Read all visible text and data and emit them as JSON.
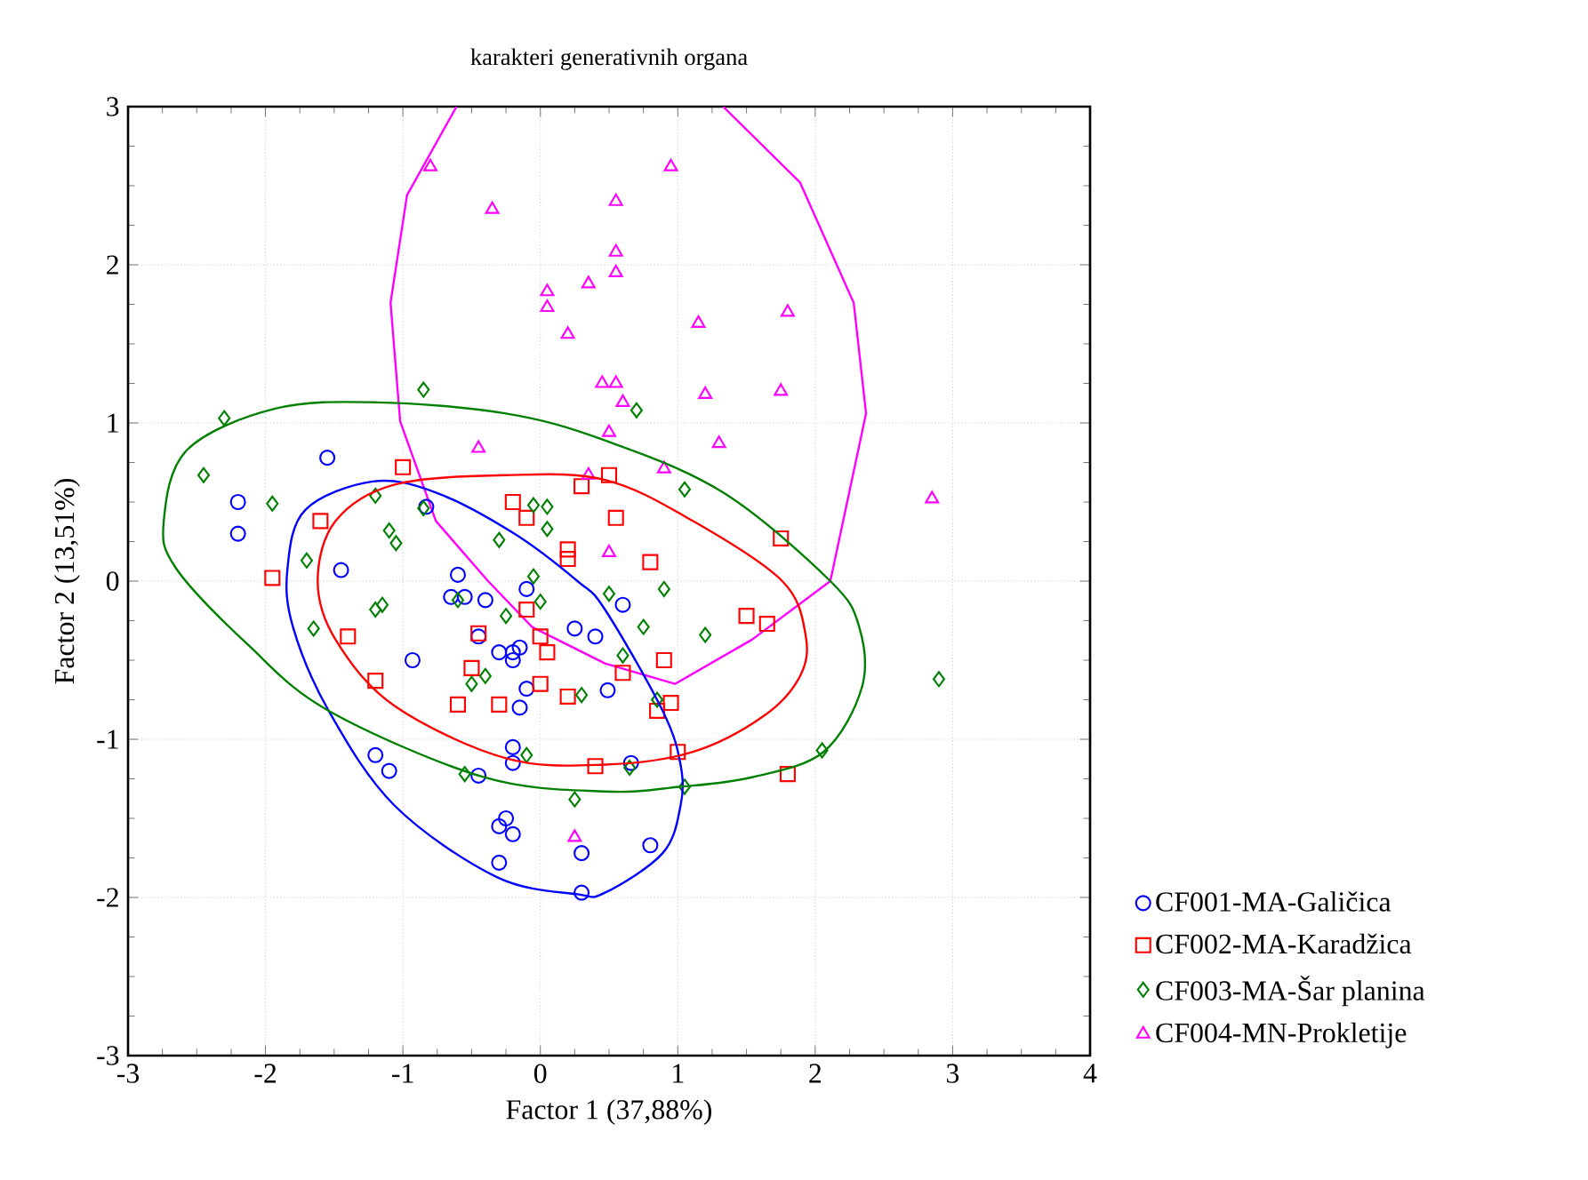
{
  "chart_data": {
    "type": "scatter",
    "title": "karakteri generativnih organa",
    "xlabel": "Factor 1 (37,88%)",
    "ylabel": "Factor 2 (13,51%)",
    "xlim": [
      -3,
      4
    ],
    "ylim": [
      -3,
      3
    ],
    "xticks": [
      -3,
      -2,
      -1,
      0,
      1,
      2,
      3,
      4
    ],
    "yticks": [
      -3,
      -2,
      -1,
      0,
      1,
      2,
      3
    ],
    "grid": true,
    "legend": "bottom right",
    "series": [
      {
        "name": "CF001-MA-Galičica",
        "color": "#0000ff",
        "marker": "circle",
        "x": [
          -2.2,
          -2.2,
          -1.55,
          -1.45,
          -0.83,
          -1.2,
          -1.1,
          -0.93,
          -0.6,
          -0.65,
          -0.55,
          -0.4,
          -0.45,
          -0.3,
          -0.2,
          -0.2,
          -0.15,
          -0.1,
          -0.1,
          -0.15,
          -0.45,
          -0.2,
          -0.2,
          -0.25,
          -0.3,
          -0.2,
          -0.3,
          0.25,
          0.4,
          0.6,
          0.49,
          0.66,
          0.8,
          0.3,
          0.3
        ],
        "values": [
          0.5,
          0.3,
          0.78,
          0.07,
          0.47,
          -1.1,
          -1.2,
          -0.5,
          0.04,
          -0.1,
          -0.1,
          -0.12,
          -0.35,
          -0.45,
          -0.45,
          -0.5,
          -0.42,
          -0.05,
          -0.68,
          -0.8,
          -1.23,
          -1.05,
          -1.15,
          -1.5,
          -1.55,
          -1.6,
          -1.78,
          -0.3,
          -0.35,
          -0.15,
          -0.69,
          -1.15,
          -1.67,
          -1.72,
          -1.97
        ]
      },
      {
        "name": "CF002-MA-Karadžica",
        "color": "#ff0000",
        "marker": "square",
        "x": [
          -1.95,
          -1.6,
          -1.4,
          -1.2,
          -1.0,
          -0.6,
          -0.5,
          -0.45,
          -0.3,
          -0.2,
          -0.1,
          -0.1,
          0.0,
          0.05,
          0.0,
          0.2,
          0.2,
          0.2,
          0.3,
          0.5,
          0.55,
          0.4,
          0.6,
          0.8,
          0.85,
          0.9,
          0.95,
          1.0,
          1.5,
          1.65,
          1.75,
          1.8
        ],
        "values": [
          0.02,
          0.38,
          -0.35,
          -0.63,
          0.72,
          -0.78,
          -0.55,
          -0.33,
          -0.78,
          0.5,
          0.4,
          -0.18,
          -0.35,
          -0.45,
          -0.65,
          0.2,
          0.14,
          -0.73,
          0.6,
          0.67,
          0.4,
          -1.17,
          -0.58,
          0.12,
          -0.82,
          -0.5,
          -0.77,
          -1.08,
          -0.22,
          -0.27,
          0.27,
          -1.22
        ]
      },
      {
        "name": "CF003-MA-Šar planina",
        "color": "#008000",
        "marker": "diamond",
        "x": [
          -2.45,
          -2.3,
          -1.95,
          -1.7,
          -1.65,
          -1.2,
          -1.2,
          -1.15,
          -1.1,
          -1.05,
          -0.85,
          -0.85,
          -0.6,
          -0.55,
          -0.5,
          -0.4,
          -0.3,
          -0.25,
          -0.1,
          -0.05,
          -0.05,
          0.05,
          0.05,
          0.0,
          0.3,
          0.5,
          0.6,
          0.65,
          0.75,
          0.7,
          0.9,
          0.85,
          1.05,
          1.2,
          1.05,
          0.25,
          2.05,
          2.9
        ],
        "values": [
          0.67,
          1.03,
          0.49,
          0.13,
          -0.3,
          0.54,
          -0.18,
          -0.15,
          0.32,
          0.24,
          0.46,
          1.21,
          -0.12,
          -1.22,
          -0.65,
          -0.6,
          0.26,
          -0.22,
          -1.1,
          0.48,
          0.03,
          0.47,
          0.33,
          -0.13,
          -0.72,
          -0.08,
          -0.47,
          -1.18,
          -0.29,
          1.08,
          -0.05,
          -0.75,
          0.58,
          -0.34,
          -1.3,
          -1.38,
          -1.07,
          -0.62
        ]
      },
      {
        "name": "CF004-MN-Prokletije",
        "color": "#ff00ff",
        "marker": "triangle",
        "x": [
          -0.8,
          -0.35,
          0.05,
          0.05,
          0.2,
          0.35,
          0.55,
          0.55,
          0.55,
          0.95,
          1.15,
          1.8,
          0.45,
          0.55,
          0.6,
          0.5,
          1.2,
          1.3,
          1.75,
          -0.45,
          0.35,
          0.9,
          0.5,
          0.25,
          2.85
        ],
        "values": [
          2.62,
          2.35,
          1.73,
          1.83,
          1.56,
          1.88,
          1.95,
          2.08,
          2.4,
          2.62,
          1.63,
          1.7,
          1.25,
          1.25,
          1.13,
          0.94,
          1.18,
          0.87,
          1.2,
          0.84,
          0.67,
          0.71,
          0.18,
          -1.62,
          0.52
        ]
      },
      {
        "type": "line",
        "color": "#ff00ff",
        "marker": "none",
        "x": [
          -0.61,
          -0.97,
          -1.09,
          -1.02,
          -0.76,
          -0.38,
          -0.06,
          0.47,
          0.98,
          1.54,
          2.11,
          2.37,
          2.28,
          1.89,
          1.33
        ],
        "values": [
          3.0,
          2.44,
          1.76,
          1.01,
          0.38,
          0.0,
          -0.29,
          -0.52,
          -0.65,
          -0.37,
          0.0,
          1.06,
          1.76,
          2.52,
          3.0
        ]
      }
    ]
  }
}
